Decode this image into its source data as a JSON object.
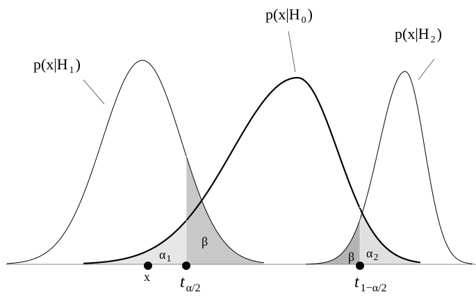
{
  "labels": [
    {
      "main": "p(x|H",
      "sub": "1",
      "close": ")"
    },
    {
      "main": "p(x|H",
      "sub": "0",
      "close": ")"
    },
    {
      "main": "p(x|H",
      "sub": "2",
      "close": ")"
    }
  ],
  "alpha_left": {
    "main": "α",
    "sub": "1"
  },
  "beta_left": "β",
  "beta_right": "β",
  "alpha_right": {
    "main": "α",
    "sub": "2"
  },
  "x_label": "x",
  "t_left": {
    "main": "t",
    "sub": "α/2"
  },
  "t_right": {
    "main": "t",
    "sub": "1−α/2"
  }
}
